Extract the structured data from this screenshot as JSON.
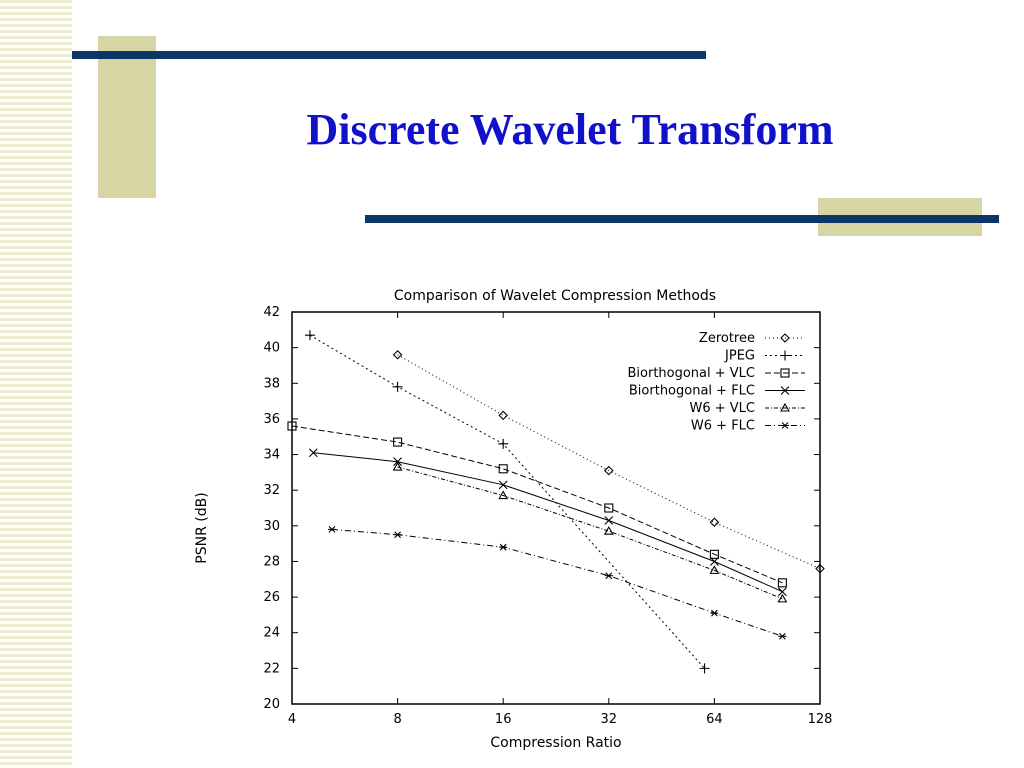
{
  "slide": {
    "title": "Discrete Wavelet Transform",
    "colors": {
      "title": "#1111cc",
      "rule": "#0c3666",
      "accent_block": "#d8d5a5",
      "stripe": "#ecebd0"
    }
  },
  "chart_data": {
    "type": "line",
    "title": "Comparison of Wavelet Compression Methods",
    "xlabel": "Compression Ratio",
    "ylabel": "PSNR (dB)",
    "xscale": "log2",
    "xlim": [
      4,
      128
    ],
    "ylim": [
      20,
      42
    ],
    "xticks": [
      "4",
      "8",
      "16",
      "32",
      "64",
      "128"
    ],
    "yticks": [
      "20",
      "22",
      "24",
      "26",
      "28",
      "30",
      "32",
      "34",
      "36",
      "38",
      "40",
      "42"
    ],
    "legend_position": "top-right",
    "series": [
      {
        "name": "Zerotree",
        "marker": "diamond",
        "dash": "1,3",
        "x": [
          8,
          16,
          32,
          64,
          128
        ],
        "y": [
          39.6,
          36.2,
          33.1,
          30.2,
          27.6
        ]
      },
      {
        "name": "JPEG",
        "marker": "plus",
        "dash": "2,3",
        "x": [
          4.5,
          8,
          16,
          60
        ],
        "y": [
          40.7,
          37.8,
          34.6,
          22.0
        ]
      },
      {
        "name": "Biorthogonal + VLC",
        "marker": "square",
        "dash": "6,3",
        "x": [
          4,
          8,
          16,
          32,
          64,
          100
        ],
        "y": [
          35.6,
          34.7,
          33.2,
          31.0,
          28.4,
          26.8
        ]
      },
      {
        "name": "Biorthogonal + FLC",
        "marker": "x",
        "dash": "",
        "x": [
          4.6,
          8,
          16,
          32,
          64,
          100
        ],
        "y": [
          34.1,
          33.6,
          32.3,
          30.3,
          28.0,
          26.3
        ]
      },
      {
        "name": "W6 + VLC",
        "marker": "triangle",
        "dash": "4,2,1,2",
        "x": [
          8,
          16,
          32,
          64,
          100
        ],
        "y": [
          33.3,
          31.7,
          29.7,
          27.5,
          25.9
        ]
      },
      {
        "name": "W6 + FLC",
        "marker": "star",
        "dash": "6,3,1,3",
        "x": [
          5.2,
          8,
          16,
          32,
          64,
          100
        ],
        "y": [
          29.8,
          29.5,
          28.8,
          27.2,
          25.1,
          23.8
        ]
      }
    ]
  }
}
